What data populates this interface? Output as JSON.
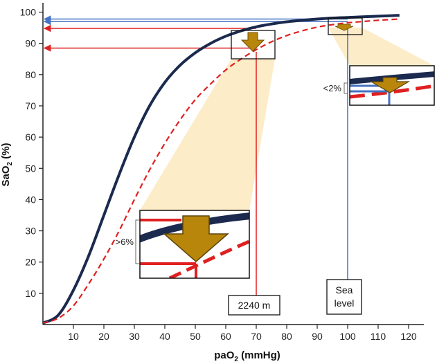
{
  "chart_data": {
    "type": "line",
    "title": "",
    "xlabel": "paO",
    "xlabel_sub": "2",
    "xlabel_unit": " (mmHg)",
    "ylabel": "SaO",
    "ylabel_sub": "2",
    "ylabel_unit": " (%)",
    "xlim": [
      0,
      125
    ],
    "ylim": [
      0,
      103
    ],
    "xticks": [
      10,
      20,
      30,
      40,
      50,
      60,
      70,
      80,
      90,
      100,
      110,
      120
    ],
    "yticks": [
      10,
      20,
      30,
      40,
      50,
      60,
      70,
      80,
      90,
      100
    ],
    "series": [
      {
        "name": "Sea level curve",
        "style": "solid",
        "color": "#1b2a4e",
        "x": [
          0,
          5,
          10,
          15,
          20,
          25,
          30,
          35,
          40,
          45,
          50,
          55,
          60,
          65,
          70,
          75,
          80,
          85,
          90,
          95,
          100,
          105,
          110,
          117
        ],
        "y": [
          0.5,
          3,
          11,
          22,
          35,
          48,
          60,
          70,
          77.5,
          83,
          87,
          90,
          92.3,
          94,
          95.3,
          96.2,
          96.9,
          97.4,
          97.8,
          98.1,
          98.3,
          98.5,
          98.7,
          99
        ]
      },
      {
        "name": "2240 m curve",
        "style": "dashed",
        "color": "#e02020",
        "x": [
          0,
          5,
          10,
          15,
          20,
          25,
          30,
          35,
          40,
          45,
          50,
          55,
          60,
          65,
          70,
          75,
          80,
          85,
          90,
          95,
          100,
          105,
          110,
          117
        ],
        "y": [
          0.5,
          2,
          6,
          13,
          21,
          30,
          40,
          49.5,
          58,
          65.5,
          72,
          77,
          81.5,
          85,
          88,
          90.5,
          92.5,
          94,
          95.2,
          96,
          96.6,
          97,
          97.4,
          97.8
        ]
      }
    ],
    "reference_lines": [
      {
        "label": "2240 m",
        "x": 70,
        "color": "#e02020"
      },
      {
        "label": "Sea level",
        "x": 100,
        "color": "#4472c4"
      }
    ],
    "horizontal_arrows": [
      {
        "y": 97.8,
        "color": "#4472c4",
        "from_x": 100
      },
      {
        "y": 97.0,
        "color": "#4472c4",
        "from_x": 100
      },
      {
        "y": 94.8,
        "color": "#e02020",
        "from_x": 70
      },
      {
        "y": 88.5,
        "color": "#e02020",
        "from_x": 70
      }
    ],
    "annotations": [
      {
        "text": "<2%",
        "target": "sea-level-zoom"
      },
      {
        "text": ">6%",
        "target": "2240m-zoom"
      }
    ]
  },
  "labels": {
    "box_2240": "2240 m",
    "box_sea_1": "Sea",
    "box_sea_2": "level",
    "note_lt2": "<2%",
    "note_gt6": ">6%"
  }
}
